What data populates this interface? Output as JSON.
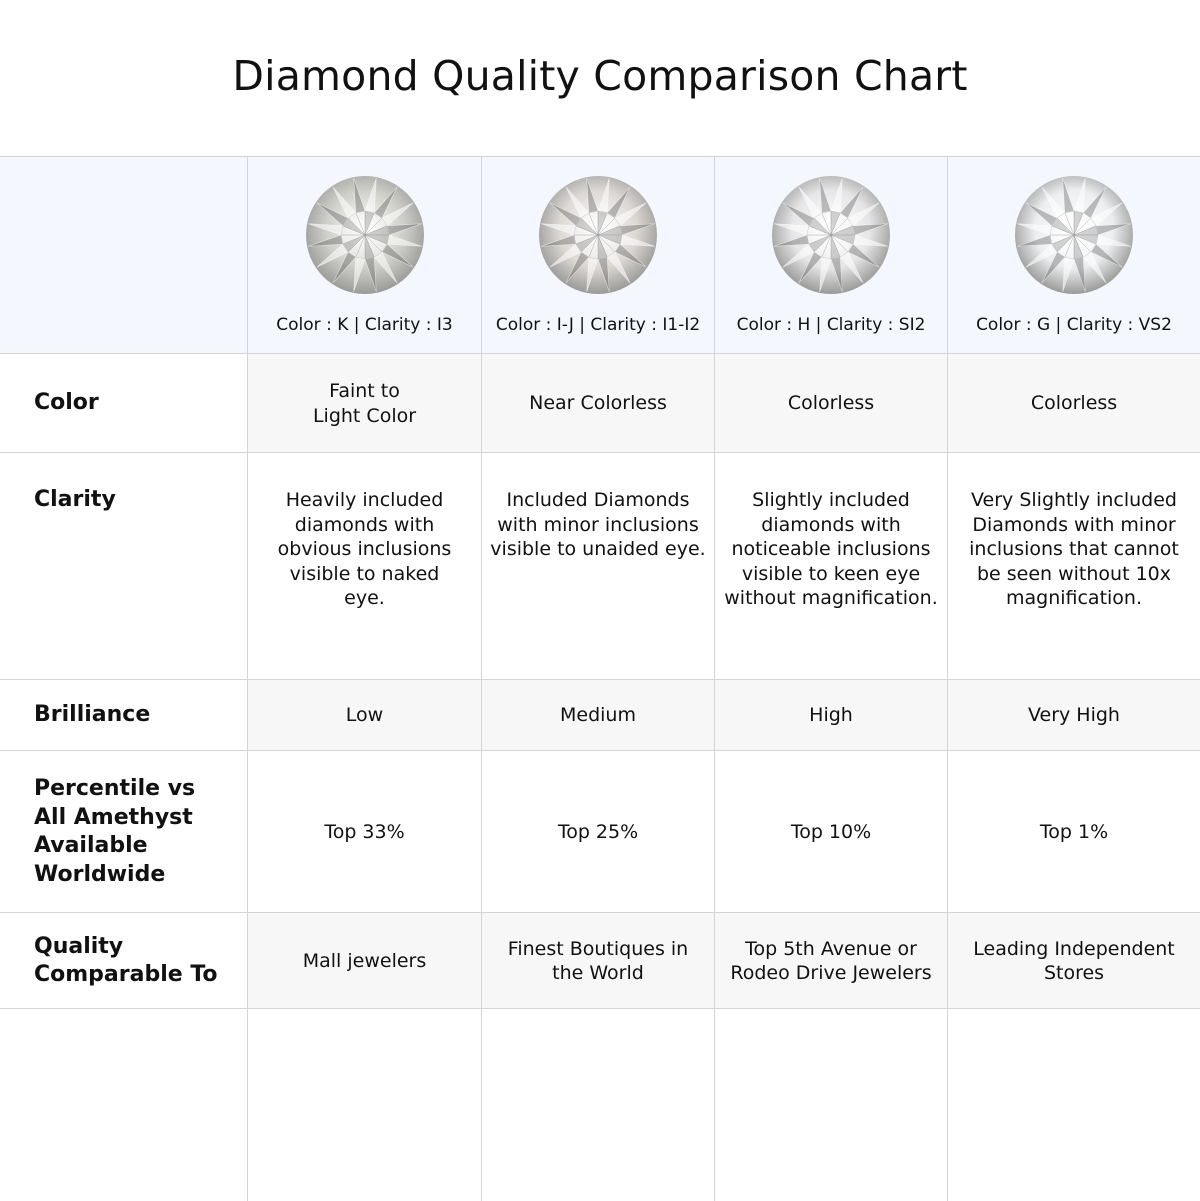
{
  "title": "Diamond Quality Comparison Chart",
  "columns": [
    {
      "caption": "Color : K | Clarity : I3",
      "diamond_tint": "#cfcfca"
    },
    {
      "caption": "Color : I-J | Clarity : I1-I2",
      "diamond_tint": "#dcd8d4"
    },
    {
      "caption": "Color : H | Clarity : SI2",
      "diamond_tint": "#e6e6e8"
    },
    {
      "caption": "Color : G | Clarity : VS2",
      "diamond_tint": "#eceef0"
    }
  ],
  "rows": [
    {
      "label": "Color",
      "values": [
        "Faint to Light Color",
        "Near Colorless",
        "Colorless",
        "Colorless"
      ]
    },
    {
      "label": "Clarity",
      "values": [
        "Heavily included diamonds with obvious inclusions visible to naked eye.",
        "Included Diamonds with minor inclusions visible to unaided eye.",
        "Slightly included diamonds with noticeable inclusions visible to keen eye without magnification.",
        "Very Slightly included Diamonds with minor inclusions that cannot be seen without 10x magnification."
      ]
    },
    {
      "label": "Brilliance",
      "values": [
        "Low",
        "Medium",
        "High",
        "Very High"
      ]
    },
    {
      "label": "Percentile vs All Amethyst Available Worldwide",
      "values": [
        "Top 33%",
        "Top 25%",
        "Top 10%",
        "Top 1%"
      ]
    },
    {
      "label": "Quality Comparable To",
      "values": [
        "Mall jewelers",
        "Finest Boutiques in the World",
        "Top 5th Avenue or Rodeo Drive Jewelers",
        "Leading Independent Stores"
      ]
    }
  ],
  "colors": {
    "header_bg": "#f4f8fe",
    "shaded_row_bg": "#f7f7f7",
    "border": "#d4d4d4"
  }
}
